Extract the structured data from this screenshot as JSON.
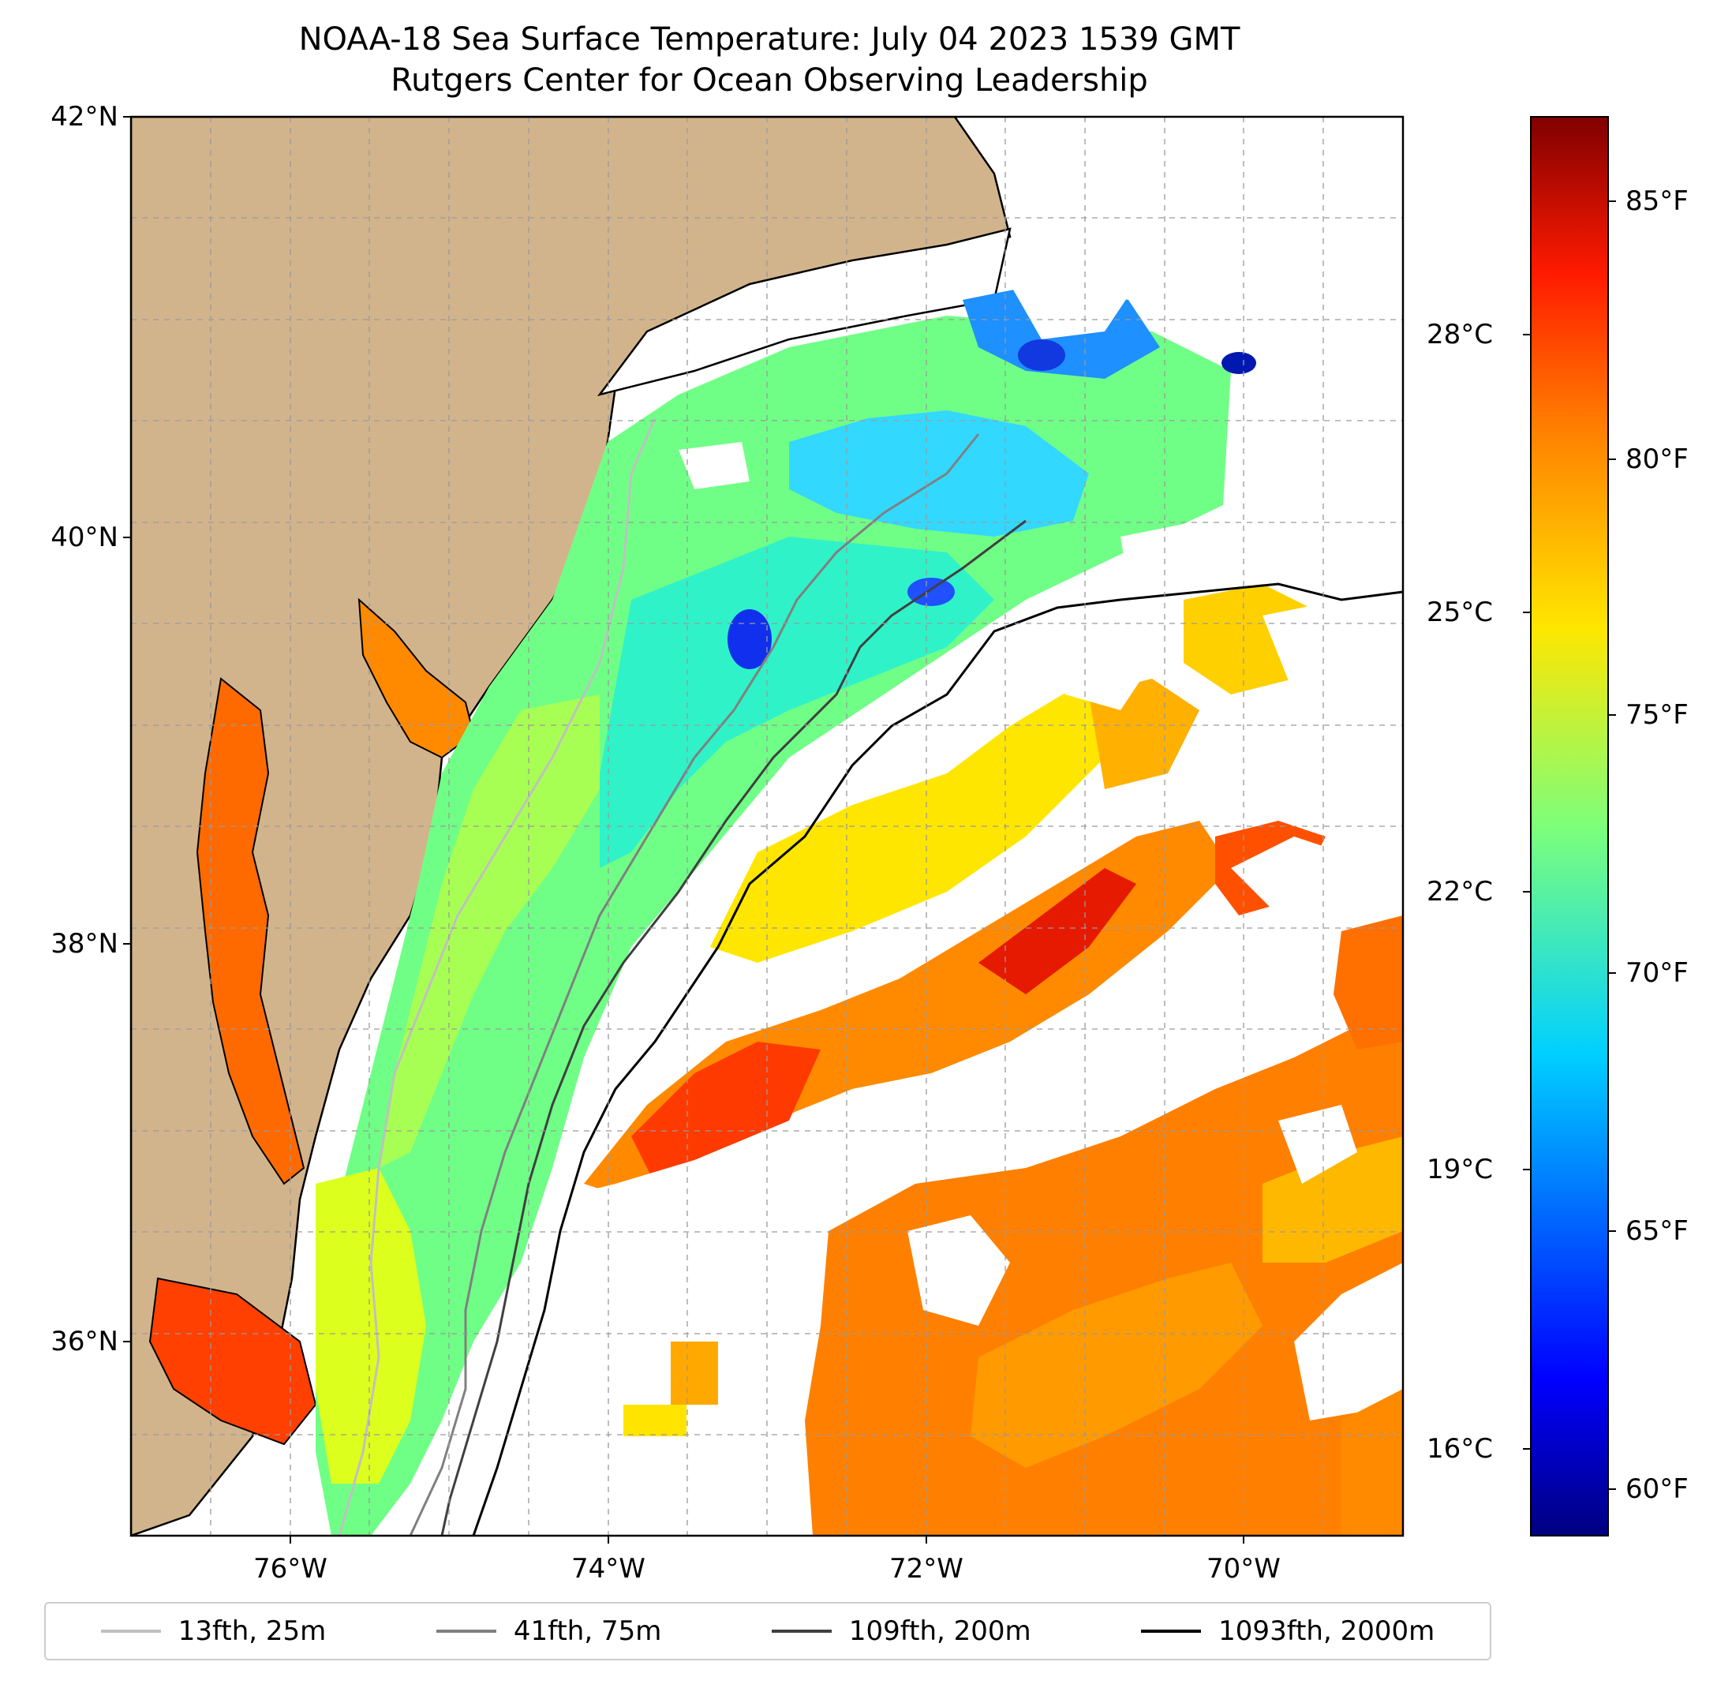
{
  "title": "NOAA-18 Sea Surface Temperature: July 04 2023 1539 GMT",
  "subtitle": "Rutgers Center for Ocean Observing Leadership",
  "map": {
    "lat_labels": [
      "42°N",
      "40°N",
      "38°N",
      "36°N"
    ],
    "lon_labels": [
      "76°W",
      "74°W",
      "72°W",
      "70°W"
    ],
    "lat_range": [
      35.0,
      42.0
    ],
    "lon_range": [
      -77.0,
      -69.0
    ],
    "land_color": "#d2b48c",
    "grid": "dashed"
  },
  "colorbar": {
    "colormap": "jet",
    "fahrenheit_labels": [
      "85°F",
      "80°F",
      "75°F",
      "70°F",
      "65°F",
      "60°F"
    ],
    "celsius_labels": [
      "28°C",
      "25°C",
      "22°C",
      "19°C",
      "16°C"
    ]
  },
  "legend": {
    "items": [
      {
        "label": "13fth, 25m",
        "color": "#c0c0c0"
      },
      {
        "label": "41fth, 75m",
        "color": "#808080"
      },
      {
        "label": "109fth, 200m",
        "color": "#404040"
      },
      {
        "label": "1093fth, 2000m",
        "color": "#000000"
      }
    ]
  }
}
